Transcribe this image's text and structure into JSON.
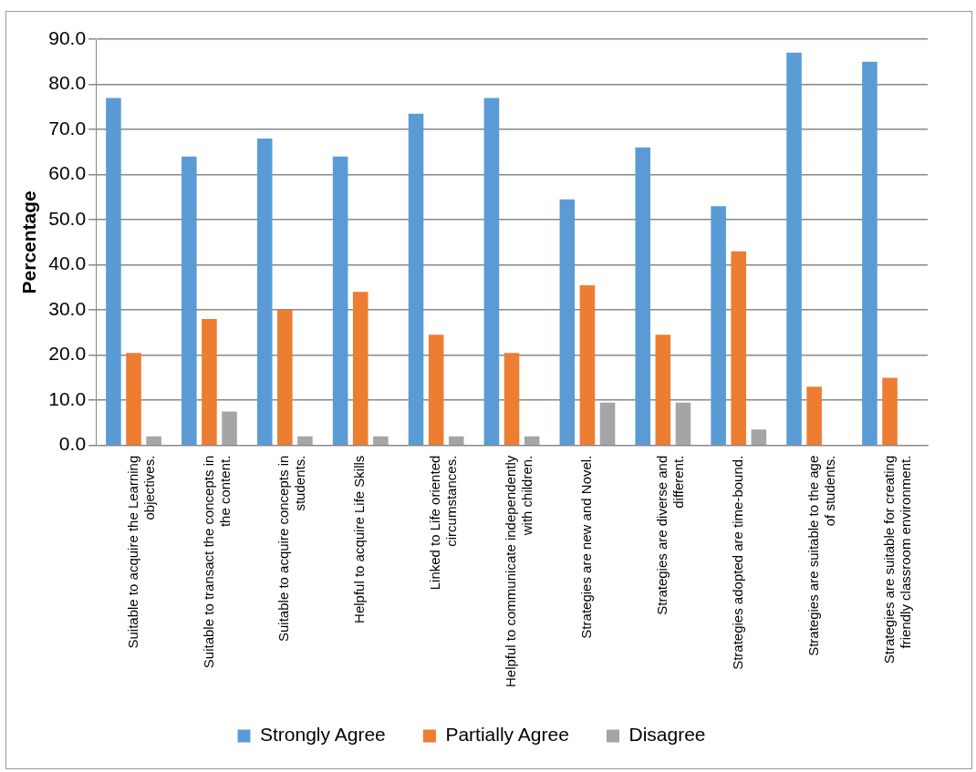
{
  "chart_data": {
    "type": "bar",
    "ylabel": "Percentage",
    "categories": [
      "Suitable to acquire the Learning objectives.",
      "Suitable to transact the concepts in the content.",
      "Suitable to acquire concepts in students.",
      "Helpful to acquire Life Skills",
      "Linked to Life oriented circumstances.",
      "Helpful to communicate independently with children.",
      "Strategies are new and Novel.",
      "Strategies are diverse and different.",
      "Strategies adopted are time-bound.",
      "Strategies are suitable to the age of students.",
      "Strategies are suitable for creating friendly classroom environment."
    ],
    "series": [
      {
        "name": "Strongly Agree",
        "color": "#5b9bd5",
        "values": [
          77,
          64,
          68,
          64,
          73.5,
          77,
          54.5,
          66,
          53,
          87,
          85
        ]
      },
      {
        "name": "Partially Agree",
        "color": "#ed7d31",
        "values": [
          20.5,
          28,
          30,
          34,
          24.5,
          20.5,
          35.5,
          24.5,
          43,
          13,
          15
        ]
      },
      {
        "name": "Disagree",
        "color": "#a5a5a5",
        "values": [
          2,
          7.5,
          2,
          2,
          2,
          2,
          9.5,
          9.5,
          3.5,
          0,
          0
        ]
      }
    ],
    "ylim": [
      0,
      90
    ],
    "yticks": [
      {
        "value": 0,
        "label": "0.0"
      },
      {
        "value": 10,
        "label": "10.0"
      },
      {
        "value": 20,
        "label": "20.0"
      },
      {
        "value": 30,
        "label": "30.0"
      },
      {
        "value": 40,
        "label": "40.0"
      },
      {
        "value": 50,
        "label": "50.0"
      },
      {
        "value": 60,
        "label": "60.0"
      },
      {
        "value": 70,
        "label": "70.0"
      },
      {
        "value": 80,
        "label": "80.0"
      },
      {
        "value": 90,
        "label": "90.0"
      }
    ],
    "grid": "y",
    "legend": "bottom"
  }
}
